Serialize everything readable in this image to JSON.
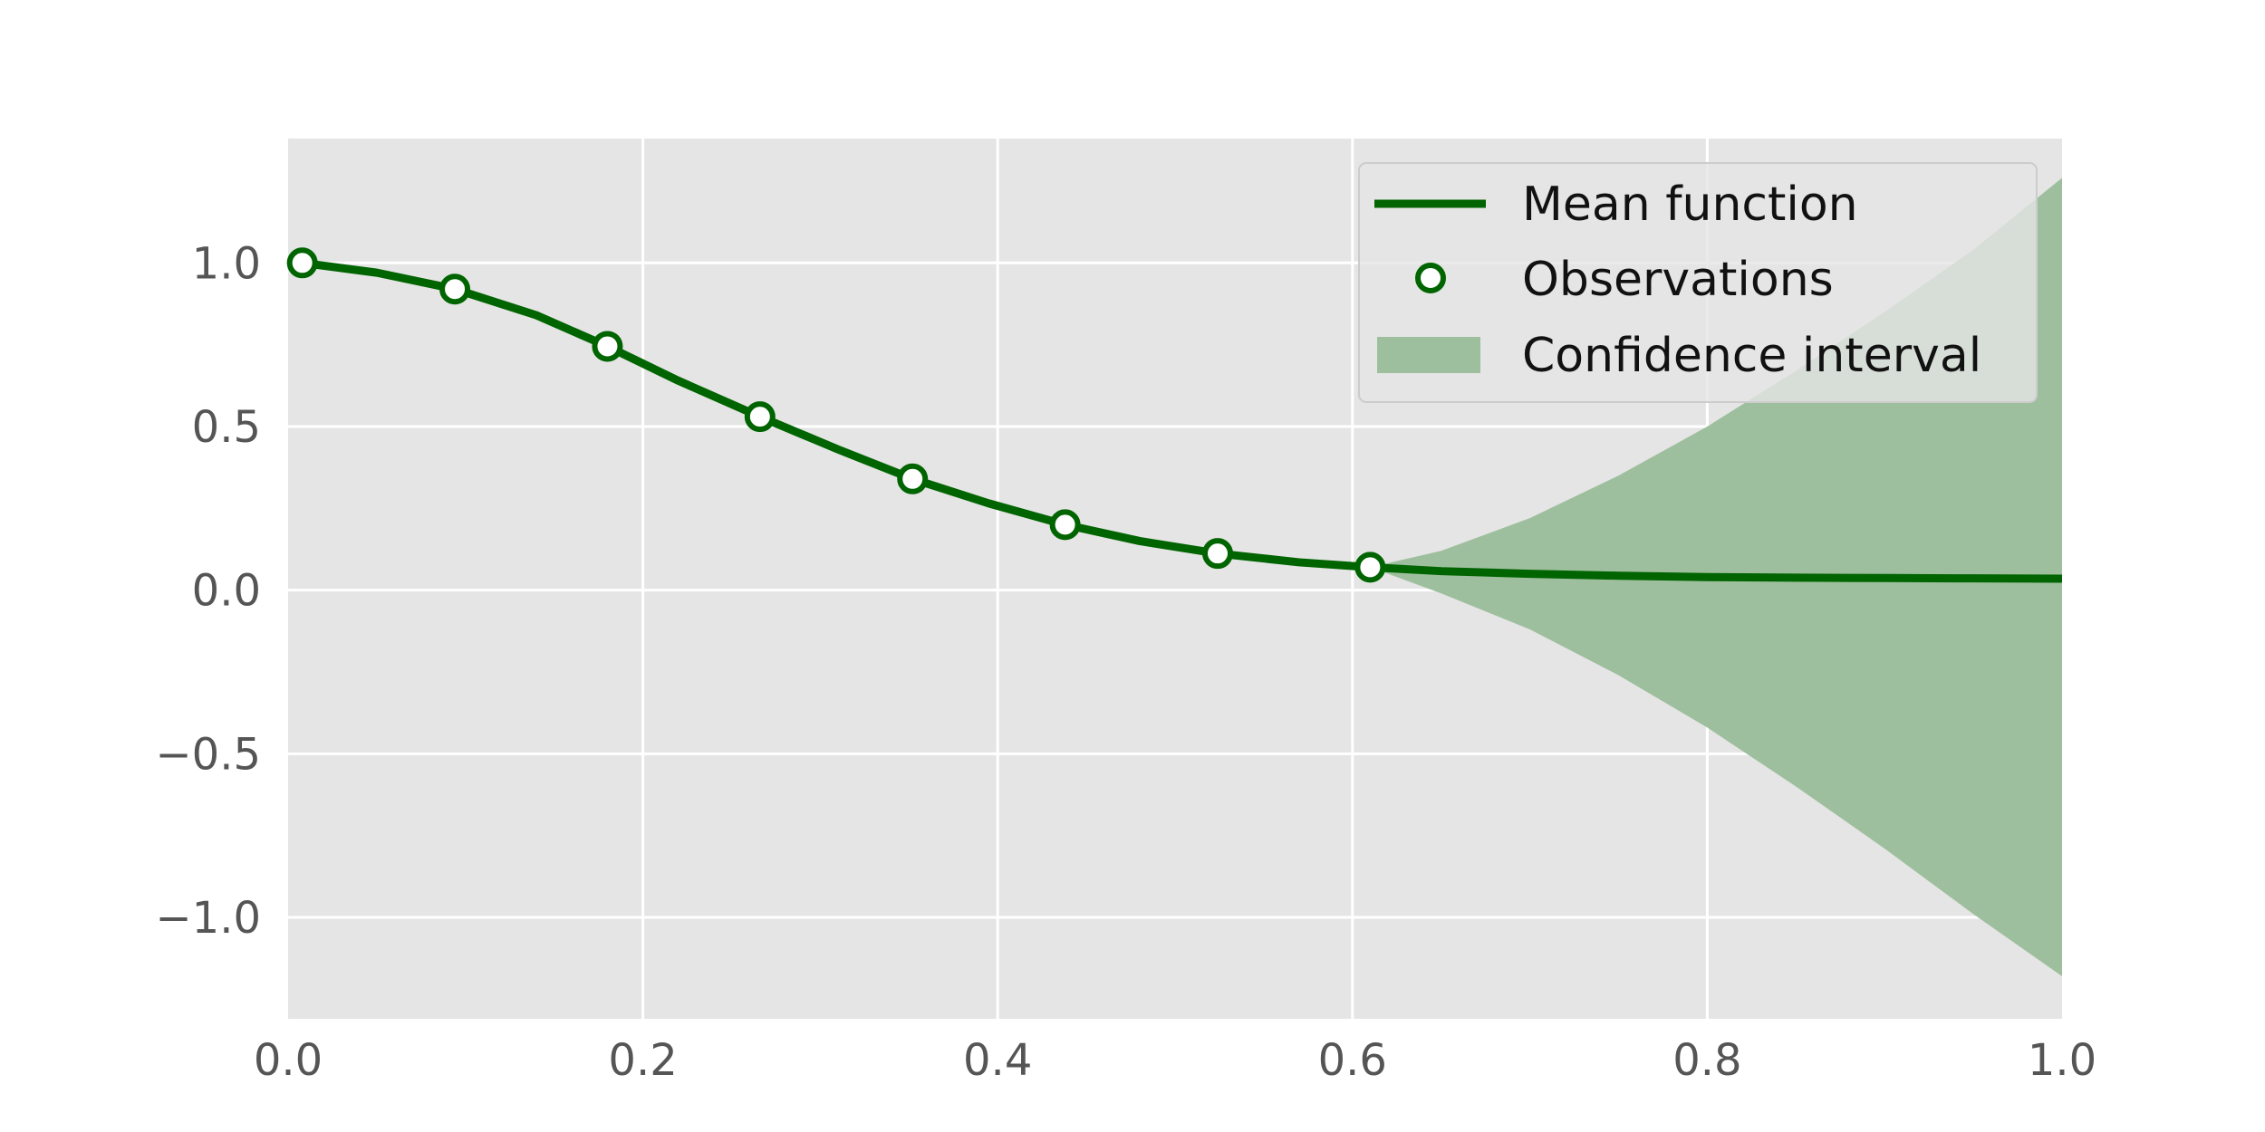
{
  "chart_data": {
    "type": "line",
    "title": "",
    "xlabel": "",
    "ylabel": "",
    "xlim": [
      0.0,
      1.0
    ],
    "ylim": [
      -1.31,
      1.38
    ],
    "x_ticks": [
      0.0,
      0.2,
      0.4,
      0.6,
      0.8,
      1.0
    ],
    "x_tick_labels": [
      "0.0",
      "0.2",
      "0.4",
      "0.6",
      "0.8",
      "1.0"
    ],
    "y_ticks": [
      1.0,
      0.5,
      0.0,
      -0.5,
      -1.0
    ],
    "y_tick_labels": [
      "1.0",
      "0.5",
      "0.0",
      "−0.5",
      "−1.0"
    ],
    "grid": true,
    "legend_position": "top-right",
    "colors": {
      "axes_background": "#e5e5e5",
      "grid": "#ffffff",
      "line": "#006400",
      "band": "#9ebf9e",
      "marker_fill": "#ffffff"
    },
    "series": [
      {
        "name": "Mean function",
        "kind": "line",
        "x": [
          0.008,
          0.05,
          0.094,
          0.14,
          0.18,
          0.22,
          0.266,
          0.31,
          0.352,
          0.395,
          0.438,
          0.48,
          0.524,
          0.57,
          0.61,
          0.65,
          0.7,
          0.75,
          0.8,
          0.85,
          0.9,
          0.95,
          1.0
        ],
        "y": [
          1.0,
          0.97,
          0.92,
          0.84,
          0.745,
          0.64,
          0.53,
          0.43,
          0.34,
          0.265,
          0.2,
          0.15,
          0.112,
          0.085,
          0.07,
          0.058,
          0.05,
          0.044,
          0.04,
          0.038,
          0.037,
          0.036,
          0.035
        ]
      },
      {
        "name": "Observations",
        "kind": "scatter",
        "x": [
          0.008,
          0.094,
          0.18,
          0.266,
          0.352,
          0.438,
          0.524,
          0.61
        ],
        "y": [
          1.0,
          0.92,
          0.745,
          0.53,
          0.34,
          0.2,
          0.112,
          0.07
        ]
      },
      {
        "name": "Confidence interval",
        "kind": "band",
        "x": [
          0.61,
          0.65,
          0.7,
          0.75,
          0.8,
          0.85,
          0.9,
          0.95,
          1.0
        ],
        "upper": [
          0.07,
          0.12,
          0.22,
          0.35,
          0.5,
          0.67,
          0.85,
          1.04,
          1.26
        ],
        "lower": [
          0.07,
          -0.01,
          -0.12,
          -0.26,
          -0.42,
          -0.6,
          -0.79,
          -0.99,
          -1.18
        ]
      }
    ]
  }
}
